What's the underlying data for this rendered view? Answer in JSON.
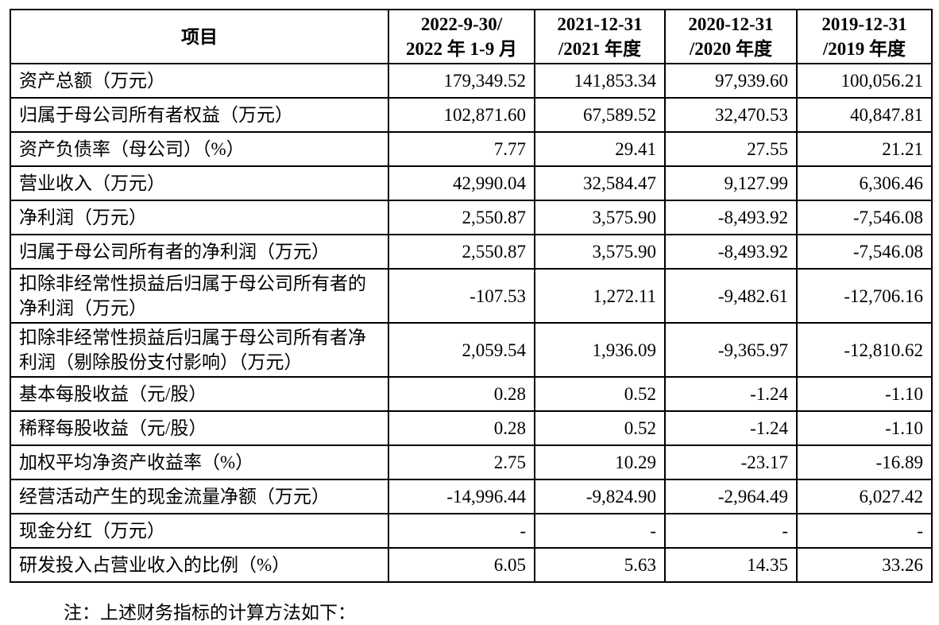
{
  "table": {
    "header": [
      [
        "项目"
      ],
      [
        "2022-9-30/",
        "2022 年 1-9 月"
      ],
      [
        "2021-12-31",
        "/2021 年度"
      ],
      [
        "2020-12-31",
        "/2020 年度"
      ],
      [
        "2019-12-31",
        "/2019 年度"
      ]
    ],
    "rows": [
      [
        "资产总额（万元）",
        "179,349.52",
        "141,853.34",
        "97,939.60",
        "100,056.21"
      ],
      [
        "归属于母公司所有者权益（万元）",
        "102,871.60",
        "67,589.52",
        "32,470.53",
        "40,847.81"
      ],
      [
        "资产负债率（母公司）（%）",
        "7.77",
        "29.41",
        "27.55",
        "21.21"
      ],
      [
        "营业收入（万元）",
        "42,990.04",
        "32,584.47",
        "9,127.99",
        "6,306.46"
      ],
      [
        "净利润（万元）",
        "2,550.87",
        "3,575.90",
        "-8,493.92",
        "-7,546.08"
      ],
      [
        "归属于母公司所有者的净利润（万元）",
        "2,550.87",
        "3,575.90",
        "-8,493.92",
        "-7,546.08"
      ],
      [
        "扣除非经常性损益后归属于母公司所有者的净利润（万元）",
        "-107.53",
        "1,272.11",
        "-9,482.61",
        "-12,706.16"
      ],
      [
        "扣除非经常性损益后归属于母公司所有者净利润（剔除股份支付影响）（万元）",
        "2,059.54",
        "1,936.09",
        "-9,365.97",
        "-12,810.62"
      ],
      [
        "基本每股收益（元/股）",
        "0.28",
        "0.52",
        "-1.24",
        "-1.10"
      ],
      [
        "稀释每股收益（元/股）",
        "0.28",
        "0.52",
        "-1.24",
        "-1.10"
      ],
      [
        "加权平均净资产收益率（%）",
        "2.75",
        "10.29",
        "-23.17",
        "-16.89"
      ],
      [
        "经营活动产生的现金流量净额（万元）",
        "-14,996.44",
        "-9,824.90",
        "-2,964.49",
        "6,027.42"
      ],
      [
        "现金分红（万元）",
        "-",
        "-",
        "-",
        "-"
      ],
      [
        "研发投入占营业收入的比例（%）",
        "6.05",
        "5.63",
        "14.35",
        "33.26"
      ]
    ]
  },
  "note": "注：上述财务指标的计算方法如下："
}
